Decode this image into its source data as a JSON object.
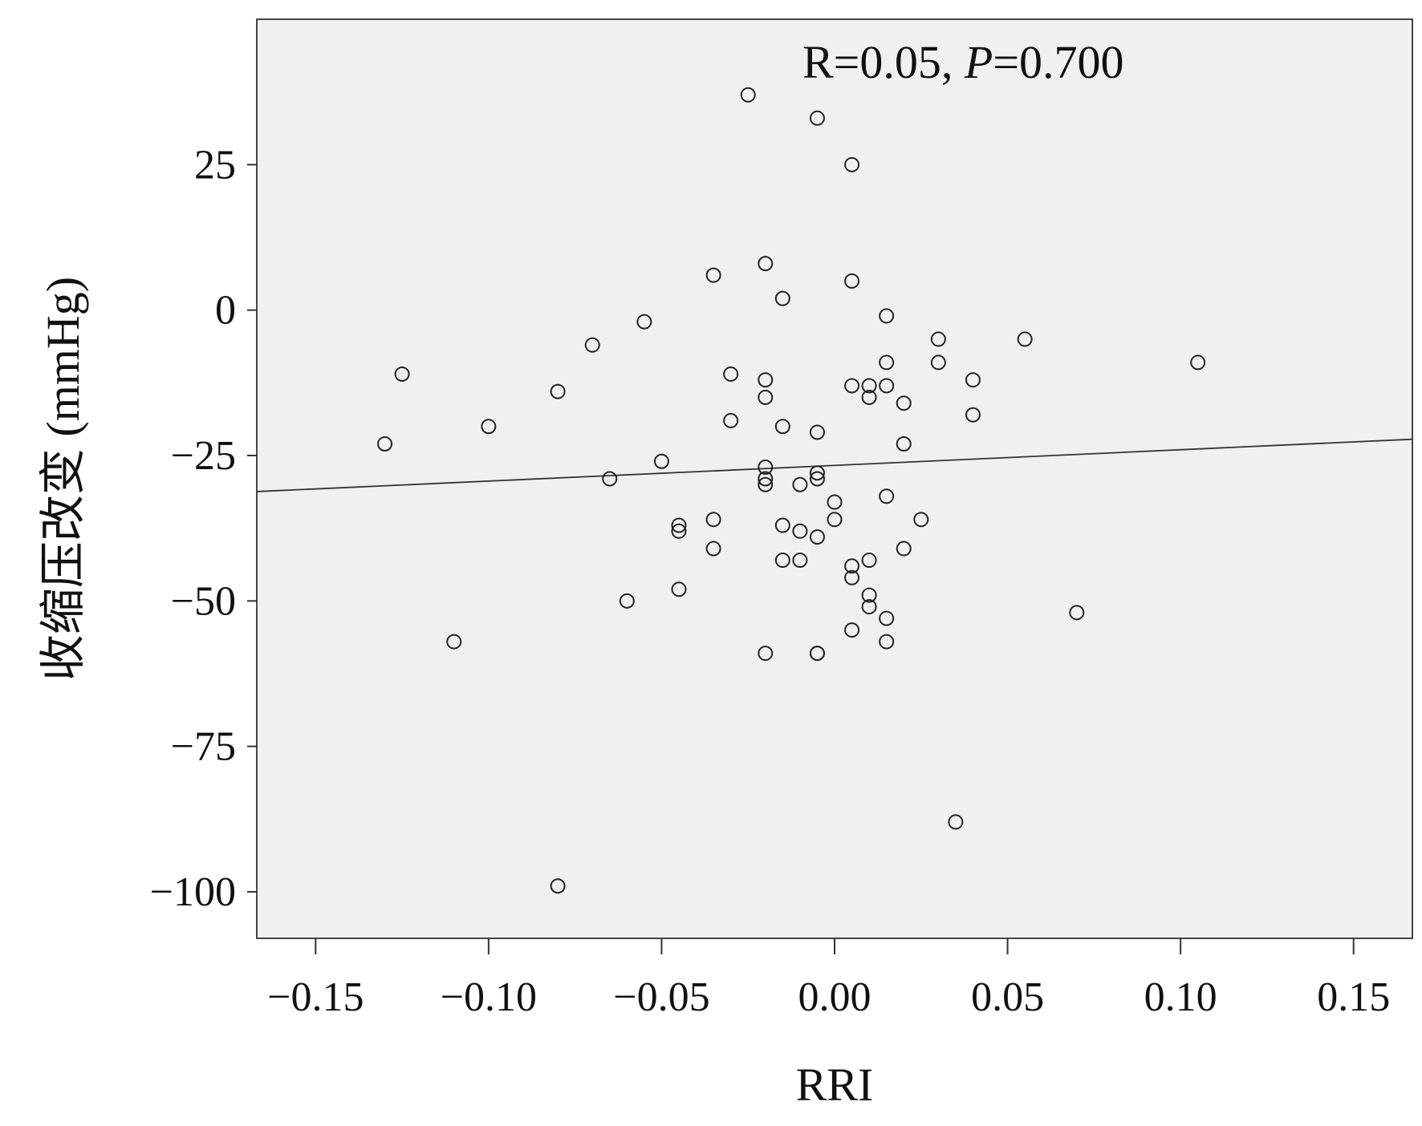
{
  "chart_data": {
    "type": "scatter",
    "xlabel": "RRI",
    "ylabel": "收缩压改变 (mmHg)",
    "annotation": {
      "prefix": "R=0.05, ",
      "italic": "P",
      "suffix": "=0.700"
    },
    "xlim": [
      -0.167,
      0.167
    ],
    "ylim": [
      -108,
      50
    ],
    "xticks": [
      -0.15,
      -0.1,
      -0.05,
      0.0,
      0.05,
      0.1,
      0.15
    ],
    "xtick_labels": [
      "−0.15",
      "−0.10",
      "−0.05",
      "0.00",
      "0.05",
      "0.10",
      "0.15"
    ],
    "yticks": [
      25,
      0,
      -25,
      -50,
      -75,
      -100
    ],
    "ytick_labels": [
      "25",
      "0",
      "−25",
      "−50",
      "−75",
      "−100"
    ],
    "fit_line": {
      "x": [
        -0.167,
        0.167
      ],
      "y": [
        -31.2,
        -22.2
      ]
    },
    "grid": false,
    "plot_background": "#f0f0f0",
    "marker_color": "#222222",
    "line_color": "#333333",
    "points": [
      {
        "x": -0.025,
        "y": 37
      },
      {
        "x": -0.005,
        "y": 33
      },
      {
        "x": 0.005,
        "y": 25
      },
      {
        "x": -0.02,
        "y": 8
      },
      {
        "x": -0.035,
        "y": 6
      },
      {
        "x": 0.005,
        "y": 5
      },
      {
        "x": -0.015,
        "y": 2
      },
      {
        "x": 0.015,
        "y": -1
      },
      {
        "x": -0.055,
        "y": -2
      },
      {
        "x": 0.03,
        "y": -5
      },
      {
        "x": 0.055,
        "y": -5
      },
      {
        "x": -0.07,
        "y": -6
      },
      {
        "x": 0.015,
        "y": -9
      },
      {
        "x": 0.03,
        "y": -9
      },
      {
        "x": 0.105,
        "y": -9
      },
      {
        "x": -0.125,
        "y": -11
      },
      {
        "x": -0.03,
        "y": -11
      },
      {
        "x": -0.02,
        "y": -12
      },
      {
        "x": 0.04,
        "y": -12
      },
      {
        "x": 0.005,
        "y": -13
      },
      {
        "x": 0.01,
        "y": -13
      },
      {
        "x": 0.015,
        "y": -13
      },
      {
        "x": -0.08,
        "y": -14
      },
      {
        "x": -0.02,
        "y": -15
      },
      {
        "x": 0.01,
        "y": -15
      },
      {
        "x": 0.02,
        "y": -16
      },
      {
        "x": 0.04,
        "y": -18
      },
      {
        "x": -0.03,
        "y": -19
      },
      {
        "x": -0.1,
        "y": -20
      },
      {
        "x": -0.015,
        "y": -20
      },
      {
        "x": -0.005,
        "y": -21
      },
      {
        "x": -0.13,
        "y": -23
      },
      {
        "x": 0.02,
        "y": -23
      },
      {
        "x": -0.05,
        "y": -26
      },
      {
        "x": -0.02,
        "y": -27
      },
      {
        "x": -0.005,
        "y": -28
      },
      {
        "x": -0.065,
        "y": -29
      },
      {
        "x": -0.02,
        "y": -29
      },
      {
        "x": -0.005,
        "y": -29
      },
      {
        "x": -0.02,
        "y": -30
      },
      {
        "x": -0.01,
        "y": -30
      },
      {
        "x": 0.015,
        "y": -32
      },
      {
        "x": 0.0,
        "y": -33
      },
      {
        "x": -0.035,
        "y": -36
      },
      {
        "x": 0.0,
        "y": -36
      },
      {
        "x": 0.025,
        "y": -36
      },
      {
        "x": -0.045,
        "y": -37
      },
      {
        "x": -0.015,
        "y": -37
      },
      {
        "x": -0.045,
        "y": -38
      },
      {
        "x": -0.01,
        "y": -38
      },
      {
        "x": -0.005,
        "y": -39
      },
      {
        "x": -0.035,
        "y": -41
      },
      {
        "x": 0.02,
        "y": -41
      },
      {
        "x": -0.015,
        "y": -43
      },
      {
        "x": -0.01,
        "y": -43
      },
      {
        "x": 0.01,
        "y": -43
      },
      {
        "x": 0.005,
        "y": -44
      },
      {
        "x": 0.005,
        "y": -46
      },
      {
        "x": -0.045,
        "y": -48
      },
      {
        "x": 0.01,
        "y": -49
      },
      {
        "x": -0.06,
        "y": -50
      },
      {
        "x": 0.01,
        "y": -51
      },
      {
        "x": 0.07,
        "y": -52
      },
      {
        "x": 0.015,
        "y": -53
      },
      {
        "x": 0.005,
        "y": -55
      },
      {
        "x": -0.11,
        "y": -57
      },
      {
        "x": 0.015,
        "y": -57
      },
      {
        "x": -0.02,
        "y": -59
      },
      {
        "x": -0.005,
        "y": -59
      },
      {
        "x": -0.005,
        "y": -59
      },
      {
        "x": 0.035,
        "y": -88
      },
      {
        "x": -0.08,
        "y": -99
      }
    ]
  }
}
